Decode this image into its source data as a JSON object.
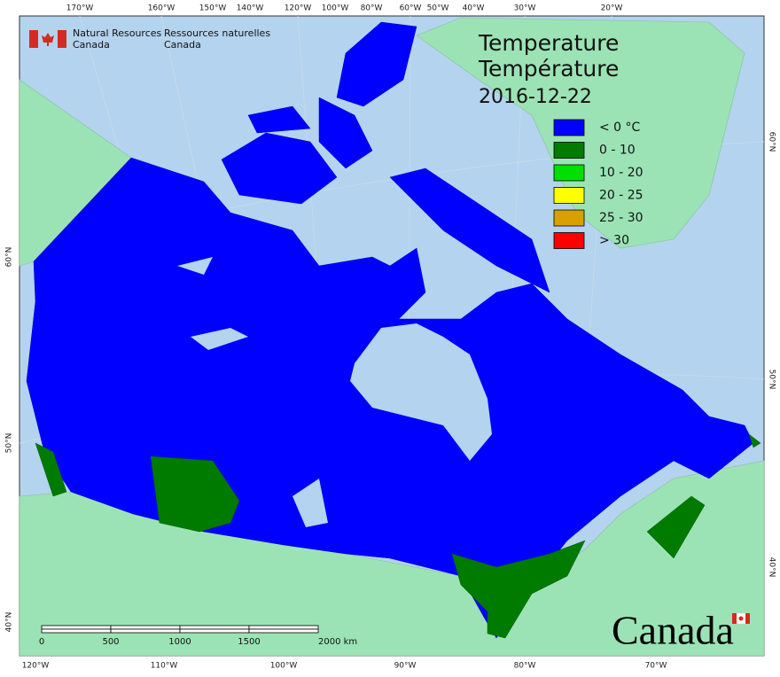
{
  "header": {
    "org_en": [
      "Natural Resources",
      "Canada"
    ],
    "org_fr": [
      "Ressources naturelles",
      "Canada"
    ]
  },
  "title": {
    "line1": "Temperature",
    "line2": "Température",
    "date": "2016-12-22"
  },
  "legend": {
    "items": [
      {
        "label": "< 0 °C",
        "color": "#0000ff"
      },
      {
        "label": "0 - 10",
        "color": "#007b00"
      },
      {
        "label": "10 - 20",
        "color": "#00e000"
      },
      {
        "label": "20 - 25",
        "color": "#ffff00"
      },
      {
        "label": "25 - 30",
        "color": "#d8a000"
      },
      {
        "label": "> 30",
        "color": "#ff0000"
      }
    ]
  },
  "graticule": {
    "top": [
      "170°W",
      "160°W",
      "150°W",
      "140°W",
      "120°W",
      "100°W",
      "80°W",
      "60°W",
      "50°W",
      "40°W",
      "30°W",
      "20°W"
    ],
    "bottom": [
      "120°W",
      "110°W",
      "100°W",
      "90°W",
      "80°W",
      "70°W"
    ],
    "left": [
      "60°N",
      "50°N",
      "40°N"
    ],
    "right": [
      "60°N",
      "50°N",
      "40°N"
    ]
  },
  "scale_bar": {
    "labels": [
      "0",
      "500",
      "1000",
      "1500",
      "2000 km"
    ]
  },
  "wordmark": "Canada"
}
